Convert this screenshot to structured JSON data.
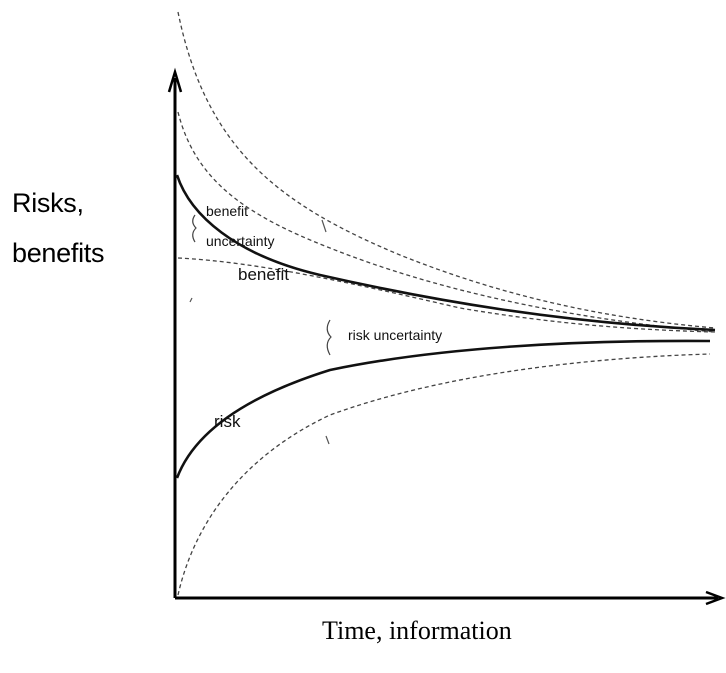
{
  "diagram": {
    "y_axis_label_line1": "Risks,",
    "y_axis_label_line2": "benefits",
    "x_axis_label": "Time, information",
    "curve_labels": {
      "benefit_uncertainty_line1": "benefit",
      "benefit_uncertainty_line2": "uncertainty",
      "benefit": "benefit",
      "risk_uncertainty": "risk uncertainty",
      "risk": "risk"
    },
    "colors": {
      "axis": "#000000",
      "curve": "#111111",
      "dashed": "#444444"
    }
  }
}
